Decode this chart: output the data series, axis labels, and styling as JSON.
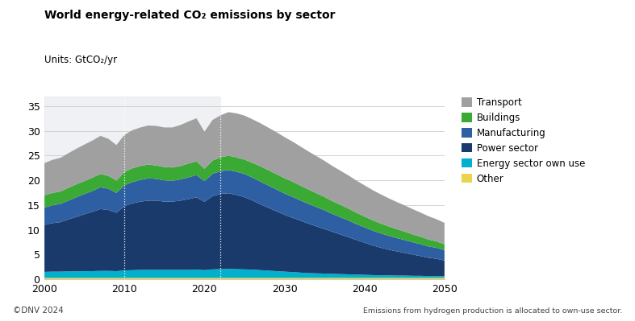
{
  "title": "World energy-related CO₂ emissions by sector",
  "units_label": "Units: GtCO₂/yr",
  "footer_left": "©DNV 2024",
  "footer_right": "Emissions from hydrogen production is allocated to own-use sector.",
  "years": [
    2000,
    2001,
    2002,
    2003,
    2004,
    2005,
    2006,
    2007,
    2008,
    2009,
    2010,
    2011,
    2012,
    2013,
    2014,
    2015,
    2016,
    2017,
    2018,
    2019,
    2020,
    2021,
    2022,
    2023,
    2024,
    2025,
    2026,
    2027,
    2028,
    2029,
    2030,
    2031,
    2032,
    2033,
    2034,
    2035,
    2036,
    2037,
    2038,
    2039,
    2040,
    2041,
    2042,
    2043,
    2044,
    2045,
    2046,
    2047,
    2048,
    2049,
    2050
  ],
  "sectors": {
    "Other": {
      "color": "#e8d44d",
      "values": [
        0.3,
        0.3,
        0.3,
        0.3,
        0.3,
        0.3,
        0.3,
        0.3,
        0.3,
        0.3,
        0.3,
        0.3,
        0.3,
        0.3,
        0.3,
        0.3,
        0.3,
        0.3,
        0.3,
        0.3,
        0.3,
        0.3,
        0.3,
        0.3,
        0.3,
        0.3,
        0.3,
        0.3,
        0.3,
        0.3,
        0.3,
        0.3,
        0.3,
        0.3,
        0.3,
        0.3,
        0.3,
        0.3,
        0.3,
        0.3,
        0.3,
        0.3,
        0.3,
        0.3,
        0.3,
        0.3,
        0.3,
        0.3,
        0.3,
        0.3,
        0.3
      ]
    },
    "Energy sector own use": {
      "color": "#00b0cc",
      "values": [
        1.2,
        1.25,
        1.25,
        1.3,
        1.3,
        1.35,
        1.35,
        1.4,
        1.4,
        1.35,
        1.5,
        1.55,
        1.6,
        1.6,
        1.6,
        1.6,
        1.6,
        1.6,
        1.6,
        1.65,
        1.55,
        1.7,
        1.75,
        1.8,
        1.75,
        1.7,
        1.65,
        1.55,
        1.45,
        1.35,
        1.25,
        1.15,
        1.05,
        0.95,
        0.9,
        0.85,
        0.8,
        0.75,
        0.7,
        0.65,
        0.6,
        0.55,
        0.5,
        0.5,
        0.45,
        0.45,
        0.4,
        0.4,
        0.35,
        0.35,
        0.3
      ]
    },
    "Power sector": {
      "color": "#1a3a6b",
      "values": [
        9.5,
        9.8,
        10.0,
        10.5,
        11.0,
        11.5,
        12.0,
        12.5,
        12.3,
        11.8,
        13.0,
        13.5,
        13.8,
        14.0,
        14.0,
        13.8,
        13.8,
        14.0,
        14.3,
        14.6,
        13.8,
        14.8,
        15.2,
        15.3,
        15.0,
        14.6,
        14.0,
        13.3,
        12.7,
        12.1,
        11.5,
        11.0,
        10.5,
        10.0,
        9.5,
        9.0,
        8.5,
        8.0,
        7.5,
        7.0,
        6.5,
        6.0,
        5.6,
        5.2,
        4.9,
        4.6,
        4.3,
        4.0,
        3.7,
        3.5,
        3.2
      ]
    },
    "Manufacturing": {
      "color": "#2e5fa3",
      "values": [
        3.5,
        3.6,
        3.7,
        3.8,
        4.0,
        4.1,
        4.2,
        4.4,
        4.3,
        4.0,
        4.2,
        4.3,
        4.4,
        4.5,
        4.4,
        4.3,
        4.2,
        4.3,
        4.4,
        4.5,
        4.2,
        4.5,
        4.6,
        4.7,
        4.7,
        4.7,
        4.6,
        4.6,
        4.5,
        4.4,
        4.3,
        4.2,
        4.1,
        4.0,
        3.9,
        3.8,
        3.6,
        3.5,
        3.4,
        3.2,
        3.1,
        3.0,
        2.9,
        2.8,
        2.7,
        2.6,
        2.5,
        2.4,
        2.3,
        2.2,
        2.1
      ]
    },
    "Buildings": {
      "color": "#3aaa35",
      "values": [
        2.5,
        2.5,
        2.5,
        2.6,
        2.6,
        2.6,
        2.7,
        2.7,
        2.6,
        2.5,
        2.7,
        2.8,
        2.8,
        2.8,
        2.7,
        2.7,
        2.7,
        2.7,
        2.8,
        2.8,
        2.5,
        2.7,
        2.8,
        2.9,
        2.9,
        2.9,
        3.0,
        3.1,
        3.1,
        3.1,
        3.1,
        3.1,
        3.0,
        2.9,
        2.8,
        2.7,
        2.6,
        2.5,
        2.4,
        2.3,
        2.2,
        2.1,
        2.0,
        1.9,
        1.8,
        1.7,
        1.6,
        1.5,
        1.4,
        1.3,
        1.2
      ]
    },
    "Transport": {
      "color": "#a0a0a0",
      "values": [
        6.5,
        6.7,
        6.8,
        7.0,
        7.2,
        7.4,
        7.5,
        7.7,
        7.5,
        7.2,
        7.5,
        7.7,
        7.8,
        7.9,
        8.0,
        8.0,
        8.1,
        8.3,
        8.5,
        8.7,
        7.5,
        8.2,
        8.5,
        8.8,
        8.9,
        8.9,
        8.8,
        8.7,
        8.6,
        8.5,
        8.3,
        8.1,
        7.9,
        7.7,
        7.5,
        7.3,
        7.1,
        6.9,
        6.7,
        6.5,
        6.3,
        6.1,
        5.9,
        5.7,
        5.5,
        5.3,
        5.1,
        4.9,
        4.7,
        4.5,
        4.3
      ]
    }
  },
  "xlim": [
    2000,
    2050
  ],
  "ylim": [
    0,
    37
  ],
  "yticks": [
    0,
    5,
    10,
    15,
    20,
    25,
    30,
    35
  ],
  "xticks": [
    2000,
    2010,
    2020,
    2030,
    2040,
    2050
  ],
  "grid_color": "#cccccc",
  "bg_color": "#ffffff",
  "historical_shade_color": "#dde0e8",
  "historical_shade_alpha": 0.45,
  "historical_end": 2022,
  "vline_years": [
    2010,
    2022
  ],
  "legend_order": [
    "Transport",
    "Buildings",
    "Manufacturing",
    "Power sector",
    "Energy sector own use",
    "Other"
  ],
  "title_fontsize": 10,
  "axis_fontsize": 9,
  "legend_fontsize": 8.5,
  "footer_fontsize": 7.5
}
